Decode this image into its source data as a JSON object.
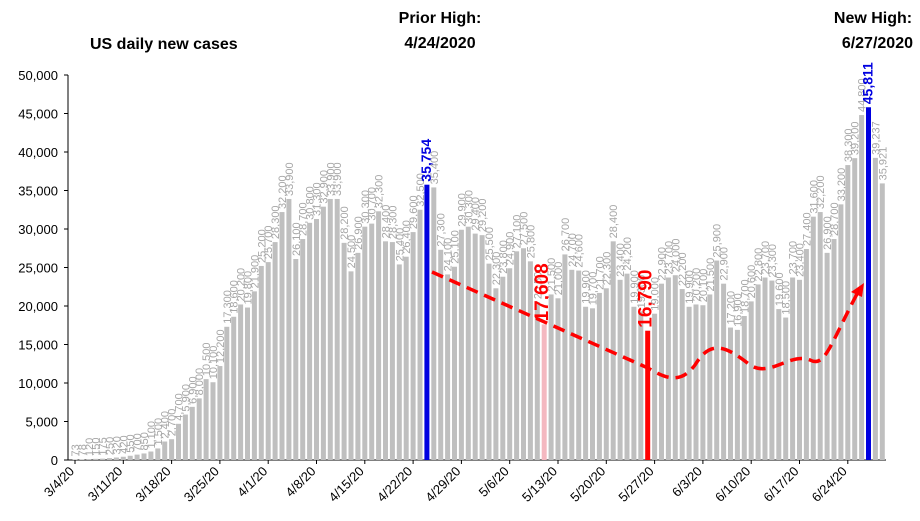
{
  "chart_data": {
    "type": "bar",
    "title": "US daily new cases",
    "annotations": [
      {
        "lines": [
          "Prior High:",
          "4/24/2020"
        ],
        "color": "#1f1fd1"
      },
      {
        "lines": [
          "New High:",
          "6/27/2020"
        ],
        "color": "#1f1fd1"
      }
    ],
    "categories": [
      "3/4/20",
      null,
      null,
      null,
      null,
      null,
      null,
      "3/11/20",
      null,
      null,
      null,
      null,
      null,
      null,
      "3/18/20",
      null,
      null,
      null,
      null,
      null,
      null,
      "3/25/20",
      null,
      null,
      null,
      null,
      null,
      null,
      "4/1/20",
      null,
      null,
      null,
      null,
      null,
      null,
      "4/8/20",
      null,
      null,
      null,
      null,
      null,
      null,
      "4/15/20",
      null,
      null,
      null,
      null,
      null,
      null,
      "4/22/20",
      null,
      null,
      null,
      null,
      null,
      null,
      "4/29/20",
      null,
      null,
      null,
      null,
      null,
      null,
      "5/6/20",
      null,
      null,
      null,
      null,
      null,
      null,
      "5/13/20",
      null,
      null,
      null,
      null,
      null,
      null,
      "5/20/20",
      null,
      null,
      null,
      null,
      null,
      null,
      "5/27/20",
      null,
      null,
      null,
      null,
      null,
      null,
      "6/3/20",
      null,
      null,
      null,
      null,
      null,
      null,
      "6/10/20",
      null,
      null,
      null,
      null,
      null,
      null,
      "6/17/20",
      null,
      null,
      null,
      null,
      null,
      null,
      "6/24/20",
      null,
      null,
      null,
      null,
      null
    ],
    "values": [
      73,
      78,
      120,
      150,
      175,
      250,
      320,
      420,
      550,
      700,
      850,
      1100,
      1500,
      2400,
      2700,
      4700,
      5900,
      6900,
      8000,
      10500,
      10100,
      12200,
      17300,
      18600,
      20200,
      19800,
      21900,
      25200,
      25700,
      28300,
      32200,
      33900,
      26100,
      28700,
      30800,
      31300,
      32900,
      33900,
      33900,
      28200,
      24500,
      26900,
      30300,
      30700,
      32300,
      28400,
      28300,
      25400,
      26400,
      29600,
      32500,
      35754,
      35400,
      27300,
      24100,
      25100,
      29900,
      30300,
      29400,
      29200,
      25500,
      22300,
      23800,
      24900,
      27100,
      27500,
      25800,
      20500,
      17608,
      21500,
      21000,
      26700,
      24700,
      24600,
      19900,
      19700,
      21700,
      22300,
      28400,
      23400,
      24200,
      19900,
      19300,
      16790,
      19000,
      22900,
      23700,
      24000,
      22200,
      19900,
      20200,
      20100,
      21500,
      25900,
      22900,
      17200,
      16900,
      18700,
      20600,
      22800,
      23700,
      23300,
      19600,
      18500,
      23700,
      23400,
      27400,
      31600,
      32200,
      26900,
      28700,
      33200,
      38300,
      39200,
      44800,
      45811,
      39237,
      35921
    ],
    "value_labels": [
      "73",
      "78",
      "120",
      "150",
      "175",
      "250",
      "320",
      "420",
      "550",
      "700",
      "850",
      "1,100",
      "1,500",
      "2,400",
      "2,700",
      "4,700",
      "5,900",
      "6,900",
      "8,000",
      "10,500",
      "10,100",
      "12,200",
      "17,300",
      "18,600",
      "20,200",
      "19,800",
      "21,900",
      "25,200",
      "25,700",
      "28,300",
      "32,200",
      "33,900",
      "26,100",
      "28,700",
      "30,800",
      "31,300",
      "32,900",
      "33,900",
      "33,900",
      "28,200",
      "24,500",
      "26,900",
      "30,300",
      "30,700",
      "32,300",
      "28,400",
      "28,300",
      "25,400",
      "26,400",
      "29,600",
      "32,500",
      "35,754",
      "35,400",
      "27,300",
      "24,100",
      "25,100",
      "29,900",
      "30,300",
      "29,400",
      "29,200",
      "25,500",
      "22,300",
      "23,800",
      "24,900",
      "27,100",
      "27,500",
      "25,800",
      "20,500",
      "17,608",
      "21,500",
      "21,000",
      "26,700",
      "24,700",
      "24,600",
      "19,900",
      "19,700",
      "21,700",
      "22,300",
      "28,400",
      "23,400",
      "24,200",
      "19,900",
      "19,300",
      "16,790",
      "19,000",
      "22,900",
      "23,700",
      "24,000",
      "22,200",
      "19,900",
      "20,200",
      "20,100",
      "21,500",
      "25,900",
      "22,900",
      "17,200",
      "16,900",
      "18,700",
      "20,600",
      "22,800",
      "23,700",
      "23,300",
      "19,600",
      "18,500",
      "23,700",
      "23,400",
      "27,400",
      "31,600",
      "32,200",
      "26,900",
      "28,700",
      "33,200",
      "38,300",
      "39,200",
      "44,800",
      "45,811",
      "39,237",
      "35,921"
    ],
    "color": "#bfbfbf",
    "label_color": "#a6a6a6",
    "highlights": [
      {
        "index": 51,
        "color": "#0000e0",
        "label_color": "#0000e0"
      },
      {
        "index": 68,
        "color": "#f4b8c0",
        "label_color": "#ff0000"
      },
      {
        "index": 83,
        "color": "#ff0000",
        "label_color": "#ff0000"
      },
      {
        "index": 115,
        "color": "#0000e0",
        "label_color": "#0000e0"
      }
    ],
    "ylim": [
      0,
      50000
    ],
    "yticks": [
      0,
      {
        "value": 5000,
        "label": "5,000"
      },
      {
        "value": 10000,
        "label": "10,000"
      },
      {
        "value": 15000,
        "label": "15,000"
      },
      {
        "value": 20000,
        "label": "20,000"
      },
      {
        "value": 25000,
        "label": "25,000"
      },
      {
        "value": 30000,
        "label": "30,000"
      },
      {
        "value": 35000,
        "label": "35,000"
      },
      {
        "value": 40000,
        "label": "40,000"
      },
      {
        "value": 45000,
        "label": "45,000"
      },
      {
        "value": 50000,
        "label": "50,000"
      }
    ],
    "grid": false
  }
}
